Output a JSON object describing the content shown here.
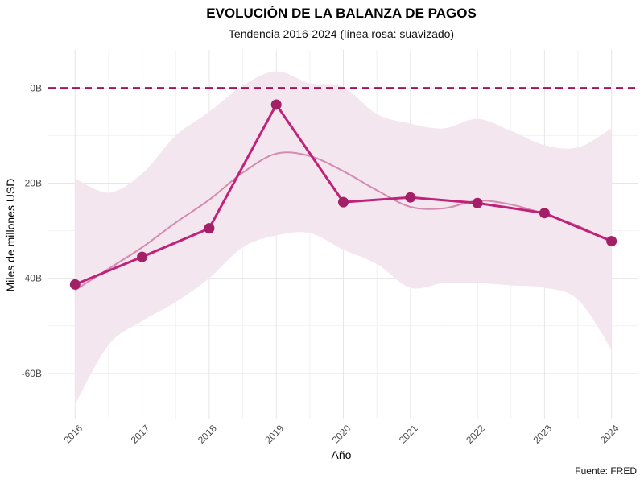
{
  "chart_data": {
    "type": "line",
    "title": "EVOLUCIÓN DE LA BALANZA DE PAGOS",
    "subtitle": "Tendencia 2016-2024 (línea rosa: suavizado)",
    "xlabel": "Año",
    "ylabel": "Miles de millones USD",
    "caption": "Fuente: FRED",
    "x": [
      "2016",
      "2017",
      "2018",
      "2019",
      "2020",
      "2021",
      "2022",
      "2023",
      "2024"
    ],
    "y_ticks": [
      0,
      -20,
      -40,
      -60
    ],
    "y_tick_labels": [
      "0B",
      "-20B",
      "-40B",
      "-60B"
    ],
    "ylim": [
      -69.5,
      8
    ],
    "grid": true,
    "reference_line": {
      "y": 0,
      "style": "dashed",
      "color": "#a4135a"
    },
    "series": [
      {
        "values": [
          -41.3,
          -35.5,
          -29.5,
          -3.5,
          -24.0,
          -23.0,
          -24.2,
          -26.3,
          -32.2
        ],
        "color": "#c0227a",
        "marker_color": "#a31f66"
      }
    ],
    "smooth": {
      "x": [
        2016,
        2016.5,
        2017,
        2017.5,
        2018,
        2018.5,
        2019,
        2019.5,
        2020,
        2020.5,
        2021,
        2021.5,
        2022,
        2022.5,
        2023,
        2023.5,
        2024
      ],
      "y": [
        -42.5,
        -38.0,
        -33.5,
        -28.3,
        -23.5,
        -17.8,
        -13.8,
        -14.3,
        -17.5,
        -21.5,
        -25.0,
        -25.3,
        -23.7,
        -24.5,
        -26.5,
        -29.0,
        -32.4
      ],
      "lower": [
        -66.5,
        -54.0,
        -49.0,
        -45.0,
        -40.0,
        -33.5,
        -31.0,
        -30.5,
        -34.0,
        -37.0,
        -42.0,
        -41.0,
        -41.0,
        -41.5,
        -42.0,
        -44.5,
        -55.0
      ],
      "upper": [
        -19.0,
        -22.0,
        -18.0,
        -10.0,
        -5.0,
        0.5,
        3.5,
        1.0,
        0.2,
        -5.5,
        -7.5,
        -8.5,
        -6.5,
        -9.0,
        -12.0,
        -12.5,
        -8.5
      ],
      "color": "#d58ab0",
      "band_color": "#f3e6ef"
    }
  }
}
